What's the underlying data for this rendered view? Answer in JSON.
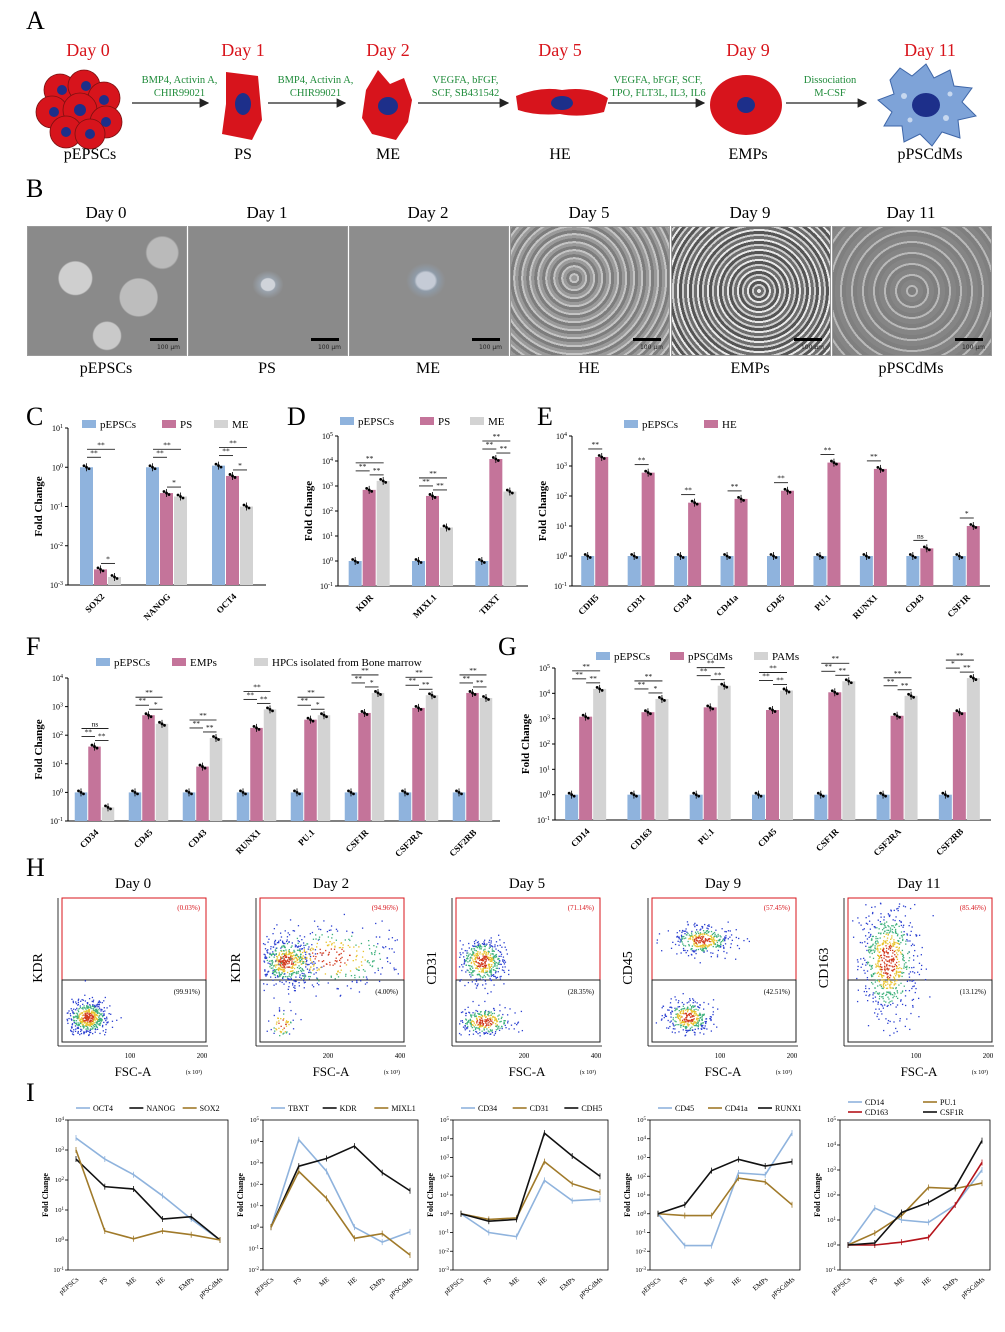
{
  "panels": {
    "A": "A",
    "B": "B",
    "C": "C",
    "D": "D",
    "E": "E",
    "F": "F",
    "G": "G",
    "H": "H",
    "I": "I"
  },
  "panelA": {
    "days": [
      "Day 0",
      "Day 1",
      "Day 2",
      "Day 5",
      "Day 9",
      "Day 11"
    ],
    "cells": [
      "pEPSCs",
      "PS",
      "ME",
      "HE",
      "EMPs",
      "pPSCdMs"
    ],
    "reagents": [
      [
        "BMP4, Activin A,",
        "CHIR99021"
      ],
      [
        "BMP4, Activin A,",
        "CHIR99021"
      ],
      [
        "VEGFA, bFGF,",
        "SCF, SB431542"
      ],
      [
        "VEGFA, bFGF, SCF,",
        "TPO, FLT3L, IL3, IL6"
      ],
      [
        "Dissociation",
        "M-CSF"
      ]
    ],
    "colors": {
      "cell": "#d7141c",
      "nucleus": "#1d2f8a",
      "macrophage": "#7ea3d8",
      "reagent": "#1f8b3a",
      "day": "#d8141b"
    }
  },
  "panelB": {
    "days": [
      "Day 0",
      "Day 1",
      "Day 2",
      "Day 5",
      "Day 9",
      "Day 11"
    ],
    "labels": [
      "pEPSCs",
      "PS",
      "ME",
      "HE",
      "EMPs",
      "pPSCdMs"
    ],
    "scale": "100 μm"
  },
  "colors": {
    "blue": "#8fb3dd",
    "pink": "#c4749a",
    "gray": "#d3d3d3"
  },
  "chart_data": [
    {
      "id": "C",
      "type": "bar",
      "ylabel": "Fold Change",
      "ylog": true,
      "ylim_exp": [
        -3,
        1
      ],
      "categories": [
        "SOX2",
        "NANOG",
        "OCT4"
      ],
      "series": [
        {
          "name": "pEPSCs",
          "values": [
            1.0,
            1.0,
            1.1
          ]
        },
        {
          "name": "PS",
          "values": [
            0.0025,
            0.22,
            0.6
          ]
        },
        {
          "name": "ME",
          "values": [
            0.0016,
            0.18,
            0.1
          ]
        }
      ],
      "sig": [
        [
          "**",
          "**",
          "*"
        ],
        [
          "**",
          "**",
          "*"
        ],
        [
          "**",
          "**",
          "*"
        ]
      ]
    },
    {
      "id": "D",
      "type": "bar",
      "ylabel": "Fold Change",
      "ylog": true,
      "ylim_exp": [
        -1,
        5
      ],
      "categories": [
        "KDR",
        "MIXL1",
        "TBXT"
      ],
      "series": [
        {
          "name": "pEPSCs",
          "values": [
            1.0,
            1.0,
            1.0
          ]
        },
        {
          "name": "PS",
          "values": [
            700,
            400,
            12000
          ]
        },
        {
          "name": "ME",
          "values": [
            1600,
            22,
            600
          ]
        }
      ],
      "sig": [
        [
          "**",
          "**",
          "**"
        ],
        [
          "**",
          "**",
          "**"
        ],
        [
          "**",
          "**",
          "**"
        ]
      ]
    },
    {
      "id": "E",
      "type": "bar",
      "ylabel": "Fold Change",
      "ylog": true,
      "ylim_exp": [
        -1,
        4
      ],
      "categories": [
        "CDH5",
        "CD31",
        "CD34",
        "CD41a",
        "CD45",
        "PU.1",
        "RUNX1",
        "CD43",
        "CSF1R"
      ],
      "series": [
        {
          "name": "pEPSCs",
          "values": [
            1,
            1,
            1,
            1,
            1,
            1,
            1,
            1,
            1
          ]
        },
        {
          "name": "HE",
          "values": [
            2000,
            600,
            60,
            80,
            150,
            1300,
            800,
            1.8,
            10
          ]
        }
      ],
      "sig": [
        "**",
        "**",
        "**",
        "**",
        "**",
        "**",
        "**",
        "ns",
        "*"
      ]
    },
    {
      "id": "F",
      "type": "bar",
      "ylabel": "Fold Change",
      "ylog": true,
      "ylim_exp": [
        -1,
        4
      ],
      "categories": [
        "CD34",
        "CD45",
        "CD43",
        "RUNX1",
        "PU.1",
        "CSF1R",
        "CSF2RA",
        "CSF2RB"
      ],
      "series": [
        {
          "name": "pEPSCs",
          "values": [
            1,
            1,
            1,
            1,
            1,
            1,
            1,
            1
          ]
        },
        {
          "name": "EMPs",
          "values": [
            40,
            500,
            8,
            180,
            350,
            600,
            900,
            3000
          ]
        },
        {
          "name": "HPCs isolated from Bone marrow",
          "values": [
            0.3,
            250,
            80,
            800,
            500,
            3000,
            2500,
            2000
          ]
        }
      ],
      "sig": [
        [
          "**",
          "ns",
          "**"
        ],
        [
          "**",
          "**",
          "*"
        ],
        [
          "**",
          "**",
          "**"
        ],
        [
          "**",
          "**",
          "**"
        ],
        [
          "**",
          "**",
          "*"
        ],
        [
          "**",
          "**",
          "*"
        ],
        [
          "**",
          "**",
          "**"
        ],
        [
          "**",
          "**",
          "**"
        ]
      ]
    },
    {
      "id": "G",
      "type": "bar",
      "ylabel": "Fold Change",
      "ylog": true,
      "ylim_exp": [
        -1,
        5
      ],
      "categories": [
        "CD14",
        "CD163",
        "PU.1",
        "CD45",
        "CSF1R",
        "CSF2RA",
        "CSF2RB"
      ],
      "series": [
        {
          "name": "pEPSCs",
          "values": [
            1,
            1,
            1,
            1,
            1,
            1,
            1
          ]
        },
        {
          "name": "pPSCdMs",
          "values": [
            1200,
            1800,
            2800,
            2200,
            11000,
            1300,
            1800
          ]
        },
        {
          "name": "PAMs",
          "values": [
            15000,
            6000,
            20000,
            13000,
            30000,
            8000,
            40000
          ]
        }
      ],
      "sig": [
        [
          "**",
          "**",
          "**"
        ],
        [
          "**",
          "**",
          "*"
        ],
        [
          "**",
          "**",
          "**"
        ],
        [
          "**",
          "**",
          "**"
        ],
        [
          "**",
          "**",
          "**"
        ],
        [
          "**",
          "**",
          "**"
        ],
        [
          "*",
          "**",
          "**"
        ]
      ]
    },
    {
      "id": "I1",
      "type": "line",
      "ylabel": "Fold Change",
      "ylog": true,
      "ylim_exp": [
        -1,
        4
      ],
      "categories": [
        "pEPSCs",
        "PS",
        "ME",
        "HE",
        "EMPs",
        "pPSCdMs"
      ],
      "series": [
        {
          "name": "OCT4",
          "color": "#8fb3dd",
          "values": [
            2500,
            500,
            150,
            30,
            5,
            1
          ]
        },
        {
          "name": "NANOG",
          "color": "#111111",
          "values": [
            500,
            60,
            50,
            5,
            6,
            1
          ]
        },
        {
          "name": "SOX2",
          "color": "#a07a2a",
          "values": [
            1000,
            2,
            1.1,
            2,
            1.5,
            1
          ]
        }
      ]
    },
    {
      "id": "I2",
      "type": "line",
      "ylabel": "Fold Change",
      "ylog": true,
      "ylim_exp": [
        -2,
        5
      ],
      "categories": [
        "pEPSCs",
        "PS",
        "ME",
        "HE",
        "EMPs",
        "pPSCdMs"
      ],
      "series": [
        {
          "name": "TBXT",
          "color": "#8fb3dd",
          "values": [
            1,
            12000,
            400,
            1,
            0.2,
            0.6
          ]
        },
        {
          "name": "KDR",
          "color": "#111111",
          "values": [
            1,
            700,
            1600,
            6000,
            350,
            50
          ]
        },
        {
          "name": "MIXL1",
          "color": "#a07a2a",
          "values": [
            1,
            400,
            22,
            0.3,
            0.5,
            0.05
          ]
        }
      ]
    },
    {
      "id": "I3",
      "type": "line",
      "ylabel": "Fold Change",
      "ylog": true,
      "ylim_exp": [
        -3,
        5
      ],
      "categories": [
        "pEPSCs",
        "PS",
        "ME",
        "HE",
        "EMPs",
        "pPSCdMs"
      ],
      "series": [
        {
          "name": "CD34",
          "color": "#8fb3dd",
          "values": [
            1,
            0.1,
            0.06,
            60,
            5,
            6
          ]
        },
        {
          "name": "CD31",
          "color": "#a07a2a",
          "values": [
            1,
            0.5,
            0.6,
            600,
            40,
            14
          ]
        },
        {
          "name": "CDH5",
          "color": "#111111",
          "values": [
            1,
            0.4,
            0.5,
            20000,
            1200,
            100
          ]
        }
      ]
    },
    {
      "id": "I4",
      "type": "line",
      "ylabel": "Fold Change",
      "ylog": true,
      "ylim_exp": [
        -3,
        5
      ],
      "categories": [
        "pEPSCs",
        "PS",
        "ME",
        "HE",
        "EMPs",
        "pPSCdMs"
      ],
      "series": [
        {
          "name": "CD45",
          "color": "#8fb3dd",
          "values": [
            1,
            0.02,
            0.02,
            150,
            120,
            20000
          ]
        },
        {
          "name": "CD41a",
          "color": "#a07a2a",
          "values": [
            1,
            0.8,
            0.8,
            80,
            50,
            3
          ]
        },
        {
          "name": "RUNX1",
          "color": "#111111",
          "values": [
            1,
            3,
            200,
            800,
            350,
            600
          ]
        }
      ]
    },
    {
      "id": "I5",
      "type": "line",
      "ylabel": "Fold Change",
      "ylog": true,
      "ylim_exp": [
        -1,
        5
      ],
      "categories": [
        "pEPSCs",
        "PS",
        "ME",
        "HE",
        "EMPs",
        "pPSCdMs"
      ],
      "series": [
        {
          "name": "CD14",
          "color": "#8fb3dd",
          "values": [
            1,
            30,
            10,
            8,
            40,
            1000
          ]
        },
        {
          "name": "PU.1",
          "color": "#a07a2a",
          "values": [
            1,
            3,
            15,
            200,
            180,
            300
          ]
        },
        {
          "name": "CD163",
          "color": "#b5141b",
          "values": [
            1,
            1,
            1.3,
            2,
            40,
            2000
          ]
        },
        {
          "name": "CSF1R",
          "color": "#111111",
          "values": [
            1,
            1.2,
            20,
            50,
            200,
            15000
          ]
        }
      ]
    }
  ],
  "panelH": [
    {
      "day": "Day 0",
      "ylabel": "KDR",
      "xlabel": "FSC-A",
      "xunit": "(x 10³)",
      "xticks": [
        "100",
        "200"
      ],
      "upper": "(0.03%)",
      "lower": "(99.91%)"
    },
    {
      "day": "Day 2",
      "ylabel": "KDR",
      "xlabel": "FSC-A",
      "xunit": "(x 10³)",
      "xticks": [
        "200",
        "400"
      ],
      "upper": "(94.96%)",
      "lower": "(4.00%)"
    },
    {
      "day": "Day 5",
      "ylabel": "CD31",
      "xlabel": "FSC-A",
      "xunit": "(x 10³)",
      "xticks": [
        "200",
        "400"
      ],
      "upper": "(71.14%)",
      "lower": "(28.35%)"
    },
    {
      "day": "Day 9",
      "ylabel": "CD45",
      "xlabel": "FSC-A",
      "xunit": "(x 10³)",
      "xticks": [
        "100",
        "200"
      ],
      "upper": "(57.45%)",
      "lower": "(42.51%)"
    },
    {
      "day": "Day 11",
      "ylabel": "CD163",
      "xlabel": "FSC-A",
      "xunit": "(x 10³)",
      "xticks": [
        "100",
        "200"
      ],
      "upper": "(85.46%)",
      "lower": "(13.12%)"
    }
  ]
}
